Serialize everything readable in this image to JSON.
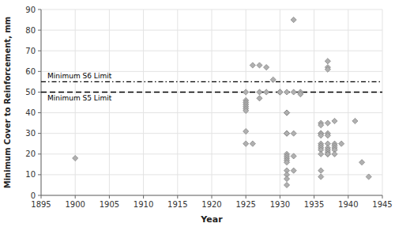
{
  "chart_data": {
    "type": "scatter",
    "xlabel": "Year",
    "ylabel": "Minimum Cover to Reinforcement, mm",
    "xlim": [
      1895,
      1945
    ],
    "ylim": [
      0,
      90
    ],
    "xticks": [
      1895,
      1900,
      1905,
      1910,
      1915,
      1920,
      1925,
      1930,
      1935,
      1940,
      1945
    ],
    "yticks": [
      0,
      10,
      20,
      30,
      40,
      50,
      60,
      70,
      80,
      90
    ],
    "grid": true,
    "color": "#b0b0b0",
    "marker": "diamond",
    "annotations": [
      {
        "text": "Minimum S6 Limit",
        "y": 55,
        "line_style": "dashdot",
        "color": "black"
      },
      {
        "text": "Minimum S5 Limit",
        "y": 50,
        "line_style": "dashed",
        "color": "black"
      }
    ],
    "x": [
      1900,
      1925,
      1925,
      1925,
      1925,
      1925,
      1925,
      1925,
      1925,
      1925,
      1926,
      1926,
      1927,
      1927,
      1927,
      1928,
      1928,
      1929,
      1930,
      1930,
      1931,
      1931,
      1931,
      1931,
      1931,
      1931,
      1931,
      1931,
      1931,
      1931,
      1931,
      1931,
      1931,
      1931,
      1932,
      1932,
      1932,
      1932,
      1932,
      1933,
      1933,
      1936,
      1936,
      1936,
      1936,
      1936,
      1936,
      1936,
      1936,
      1936,
      1936,
      1936,
      1936,
      1937,
      1937,
      1937,
      1937,
      1937,
      1937,
      1937,
      1937,
      1937,
      1937,
      1937,
      1937,
      1938,
      1938,
      1938,
      1938,
      1938,
      1938,
      1939,
      1941,
      1942,
      1943
    ],
    "values": [
      18,
      50,
      46,
      45,
      44,
      43,
      42,
      41,
      31,
      25,
      63,
      25,
      63,
      50,
      47,
      62,
      50,
      56,
      50,
      50,
      50,
      40,
      40,
      30,
      30,
      20,
      19,
      18,
      17,
      16,
      12,
      10,
      8,
      5,
      85,
      50,
      30,
      19,
      12,
      50,
      49,
      35,
      34,
      30,
      30,
      29,
      25,
      24,
      23,
      22,
      20,
      12,
      9,
      65,
      62,
      61,
      35,
      30,
      29,
      25,
      23,
      22,
      21,
      20,
      20,
      36,
      25,
      24,
      23,
      22,
      20,
      25,
      36,
      16,
      9
    ]
  }
}
